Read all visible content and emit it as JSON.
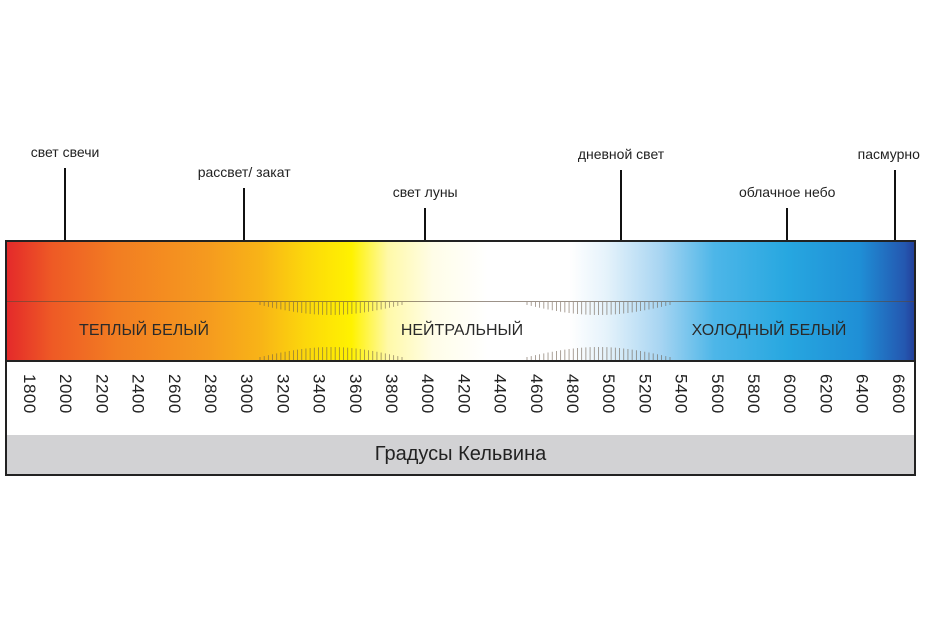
{
  "markers": [
    {
      "label": "свет свечи",
      "kelvin": 1900
    },
    {
      "label": "рассвет/ закат",
      "kelvin": 3000
    },
    {
      "label": "свет луны",
      "kelvin": 4000
    },
    {
      "label": "дневной свет",
      "kelvin": 5100
    },
    {
      "label": "облачное небо",
      "kelvin": 6000
    },
    {
      "label": "пасмурно",
      "kelvin": 6600
    }
  ],
  "zones": [
    "ТЕПЛЫЙ БЕЛЫЙ",
    "НЕЙТРАЛЬНЫЙ",
    "ХОЛОДНЫЙ БЕЛЫЙ"
  ],
  "scale": [
    "1800",
    "2000",
    "2200",
    "2400",
    "2600",
    "2800",
    "3000",
    "3200",
    "3400",
    "3600",
    "3800",
    "4000",
    "4200",
    "4400",
    "4600",
    "4800",
    "5000",
    "5200",
    "5400",
    "5600",
    "5800",
    "6000",
    "6200",
    "6400",
    "6600"
  ],
  "unit_label": "Градусы Кельвина"
}
